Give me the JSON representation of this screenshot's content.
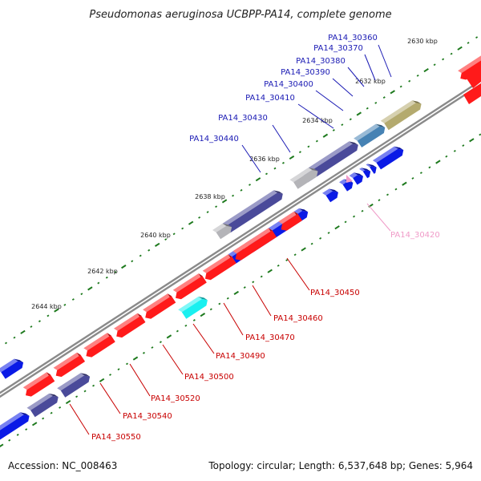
{
  "title": "Pseudomonas aeruginosa UCBPP-PA14, complete genome",
  "footer": {
    "accession": "Accession: NC_008463",
    "topology": "Topology: circular; Length: 6,537,648 bp; Genes: 5,964"
  },
  "colors": {
    "forward_label": "#1a1ab4",
    "reverse_label": "#c80000",
    "highlight_label": "#f09bc8",
    "backbone": "#8a8a8a",
    "tick": "#1e7a1e",
    "red_gene": "#ff1a1a",
    "blue_gene": "#0a1ae6",
    "slate_gene": "#4a4a9a",
    "grey_gene": "#b4b4b8",
    "cyan_gene": "#19f0f0",
    "olive_gene": "#b4aa6e",
    "steel_gene": "#4682b4"
  },
  "kbp_labels": [
    "2630 kbp",
    "2632 kbp",
    "2634 kbp",
    "2636 kbp",
    "2638 kbp",
    "2640 kbp",
    "2642 kbp",
    "2644 kbp"
  ],
  "gene_labels": [
    {
      "text": "PA14_30360",
      "strand": "forward"
    },
    {
      "text": "PA14_30370",
      "strand": "forward"
    },
    {
      "text": "PA14_30380",
      "strand": "forward"
    },
    {
      "text": "PA14_30390",
      "strand": "forward"
    },
    {
      "text": "PA14_30400",
      "strand": "forward"
    },
    {
      "text": "PA14_30410",
      "strand": "forward"
    },
    {
      "text": "PA14_30430",
      "strand": "forward"
    },
    {
      "text": "PA14_30440",
      "strand": "forward"
    },
    {
      "text": "PA14_30420",
      "strand": "highlight"
    },
    {
      "text": "PA14_30450",
      "strand": "reverse"
    },
    {
      "text": "PA14_30460",
      "strand": "reverse"
    },
    {
      "text": "PA14_30470",
      "strand": "reverse"
    },
    {
      "text": "PA14_30490",
      "strand": "reverse"
    },
    {
      "text": "PA14_30500",
      "strand": "reverse"
    },
    {
      "text": "PA14_30520",
      "strand": "reverse"
    },
    {
      "text": "PA14_30540",
      "strand": "reverse"
    },
    {
      "text": "PA14_30550",
      "strand": "reverse"
    }
  ]
}
